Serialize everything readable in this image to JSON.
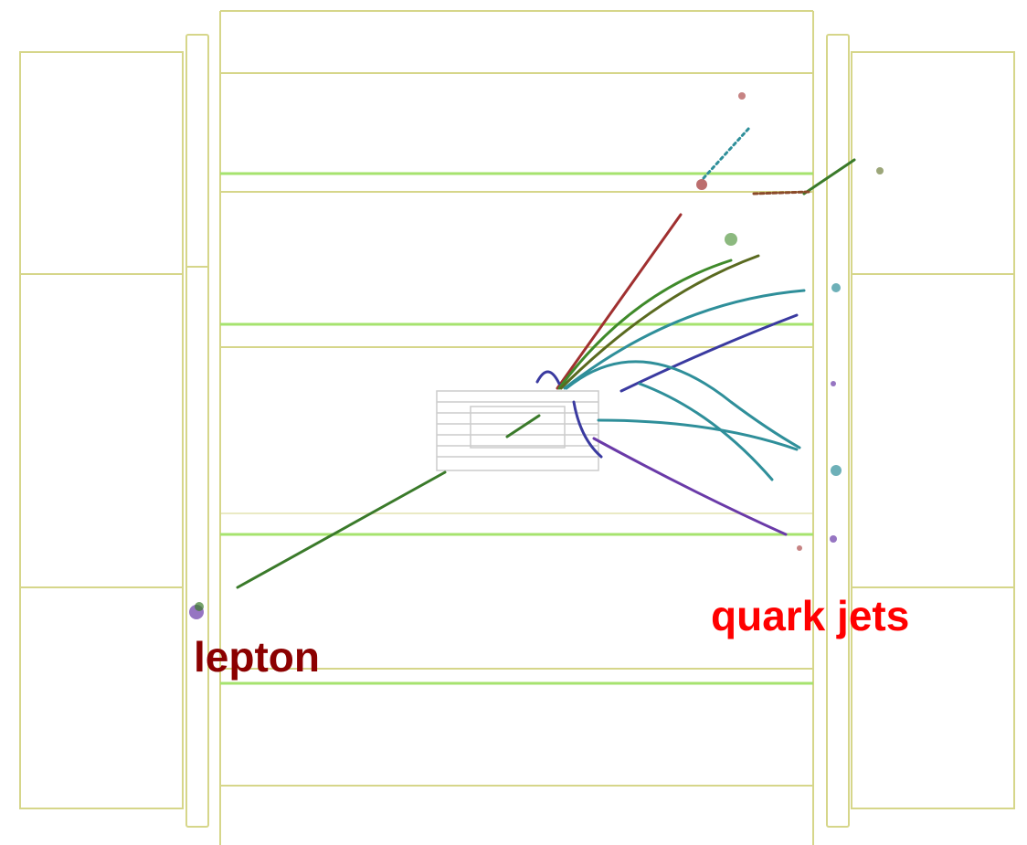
{
  "labels": [
    "lepton",
    "quark jets"
  ]
}
